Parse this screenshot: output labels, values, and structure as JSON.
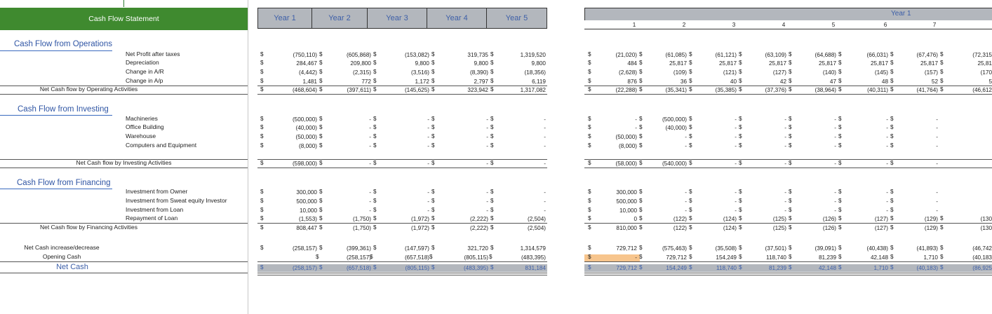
{
  "title": "Cash Flow Statement",
  "sections": {
    "operations": "Cash Flow from Operations",
    "investing": "Cash Flow from Investing",
    "financing": "Cash Flow from Financing"
  },
  "row_labels": {
    "net_profit": "Net Profit after taxes",
    "depreciation": "Depreciation",
    "change_ar": "Change in A/R",
    "change_ap": "Change in A/p",
    "net_operating": "Net Cash flow by Operating Activities",
    "machineries": "Machineries",
    "office_building": "Office Building",
    "warehouse": "Warehouse",
    "computers": "Computers and Equipment",
    "net_investing": "Net Cash flow by Investing Activities",
    "inv_owner": "Investment from Owner",
    "inv_sweat": "Investment from Sweat equity Investor",
    "inv_loan": "Investment from Loan",
    "repay_loan": "Repayment of Loan",
    "net_financing": "Net Cash flow by Financing Activities",
    "net_increase": "Net Cash increase/decrease",
    "opening_cash": "Opening Cash",
    "net_cash": "Net Cash"
  },
  "currency_symbol": "$",
  "annual": {
    "headers": [
      "Year 1",
      "Year 2",
      "Year 3",
      "Year 4",
      "Year 5"
    ],
    "rows": {
      "net_profit": [
        "(750,110)",
        "(605,868)",
        "(153,082)",
        "319,735",
        "1,319,520"
      ],
      "depreciation": [
        "284,467",
        "209,800",
        "9,800",
        "9,800",
        "9,800"
      ],
      "change_ar": [
        "(4,442)",
        "(2,315)",
        "(3,516)",
        "(8,390)",
        "(18,356)"
      ],
      "change_ap": [
        "1,481",
        "772",
        "1,172",
        "2,797",
        "6,119"
      ],
      "net_operating": [
        "(468,604)",
        "(397,611)",
        "(145,625)",
        "323,942",
        "1,317,082"
      ],
      "machineries": [
        "(500,000)",
        "-",
        "-",
        "-",
        "-"
      ],
      "office_building": [
        "(40,000)",
        "-",
        "-",
        "-",
        "-"
      ],
      "warehouse": [
        "(50,000)",
        "-",
        "-",
        "-",
        "-"
      ],
      "computers": [
        "(8,000)",
        "-",
        "-",
        "-",
        "-"
      ],
      "net_investing": [
        "(598,000)",
        "-",
        "-",
        "-",
        "-"
      ],
      "inv_owner": [
        "300,000",
        "-",
        "-",
        "-",
        "-"
      ],
      "inv_sweat": [
        "500,000",
        "-",
        "-",
        "-",
        "-"
      ],
      "inv_loan": [
        "10,000",
        "-",
        "-",
        "-",
        "-"
      ],
      "repay_loan": [
        "(1,553)",
        "(1,750)",
        "(1,972)",
        "(2,222)",
        "(2,504)"
      ],
      "net_financing": [
        "808,447",
        "(1,750)",
        "(1,972)",
        "(2,222)",
        "(2,504)"
      ],
      "net_increase": [
        "(258,157)",
        "(399,361)",
        "(147,597)",
        "321,720",
        "1,314,579"
      ],
      "opening_cash": [
        "",
        "(258,157)",
        "(657,518)",
        "(805,115)",
        "(483,395)"
      ],
      "net_cash": [
        "(258,157)",
        "(657,518)",
        "(805,115)",
        "(483,395)",
        "831,184"
      ]
    }
  },
  "monthly": {
    "year_label": "Year 1",
    "months": [
      "1",
      "2",
      "3",
      "4",
      "5",
      "6",
      "7",
      ""
    ],
    "rows": {
      "net_profit": [
        "(21,020)",
        "(61,085)",
        "(61,121)",
        "(63,109)",
        "(64,688)",
        "(66,031)",
        "(67,476)",
        "(72,315"
      ],
      "depreciation": [
        "484",
        "25,817",
        "25,817",
        "25,817",
        "25,817",
        "25,817",
        "25,817",
        "25,81"
      ],
      "change_ar": [
        "(2,628)",
        "(109)",
        "(121)",
        "(127)",
        "(140)",
        "(145)",
        "(157)",
        "(170"
      ],
      "change_ap": [
        "876",
        "36",
        "40",
        "42",
        "47",
        "48",
        "52",
        "5"
      ],
      "net_operating": [
        "(22,288)",
        "(35,341)",
        "(35,385)",
        "(37,376)",
        "(38,964)",
        "(40,311)",
        "(41,764)",
        "(46,612"
      ],
      "machineries": [
        "-",
        "(500,000)",
        "-",
        "-",
        "-",
        "-",
        "-",
        ""
      ],
      "office_building": [
        "-",
        "(40,000)",
        "-",
        "-",
        "-",
        "-",
        "-",
        ""
      ],
      "warehouse": [
        "(50,000)",
        "-",
        "-",
        "-",
        "-",
        "-",
        "-",
        ""
      ],
      "computers": [
        "(8,000)",
        "-",
        "-",
        "-",
        "-",
        "-",
        "-",
        ""
      ],
      "net_investing": [
        "(58,000)",
        "(540,000)",
        "-",
        "-",
        "-",
        "-",
        "-",
        ""
      ],
      "inv_owner": [
        "300,000",
        "-",
        "-",
        "-",
        "-",
        "-",
        "-",
        ""
      ],
      "inv_sweat": [
        "500,000",
        "-",
        "-",
        "-",
        "-",
        "-",
        "-",
        ""
      ],
      "inv_loan": [
        "10,000",
        "-",
        "-",
        "-",
        "-",
        "-",
        "-",
        ""
      ],
      "repay_loan": [
        "0",
        "(122)",
        "(124)",
        "(125)",
        "(126)",
        "(127)",
        "(129)",
        "(130"
      ],
      "net_financing": [
        "810,000",
        "(122)",
        "(124)",
        "(125)",
        "(126)",
        "(127)",
        "(129)",
        "(130"
      ],
      "net_increase": [
        "729,712",
        "(575,463)",
        "(35,508)",
        "(37,501)",
        "(39,091)",
        "(40,438)",
        "(41,893)",
        "(46,742"
      ],
      "opening_cash": [
        "-",
        "729,712",
        "154,249",
        "118,740",
        "81,239",
        "42,148",
        "1,710",
        "(40,183"
      ],
      "net_cash": [
        "729,712",
        "154,249",
        "118,740",
        "81,239",
        "42,148",
        "1,710",
        "(40,183)",
        "(86,925"
      ]
    }
  },
  "colors": {
    "title_bg": "#3f8a2f",
    "header_bg": "#b3b7bd",
    "header_text": "#3d5fa8",
    "section_text": "#2f55a4",
    "highlight_cell": "#f7c58d"
  }
}
